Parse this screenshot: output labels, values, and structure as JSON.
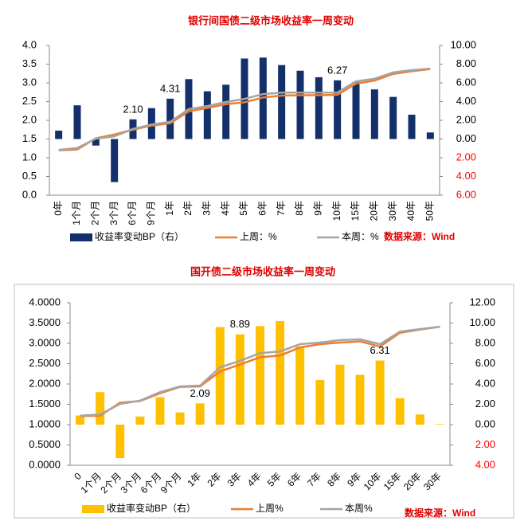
{
  "chart_data": [
    {
      "type": "combo",
      "title": "银行间国债二级市场收益率一周变动",
      "source": "数据来源：Wind",
      "categories": [
        "0年",
        "1个月",
        "2个月",
        "3个月",
        "6个月",
        "9个月",
        "1年",
        "2年",
        "3年",
        "4年",
        "5年",
        "6年",
        "7年",
        "8年",
        "9年",
        "10年",
        "15年",
        "20年",
        "30年",
        "40年",
        "50年"
      ],
      "series": [
        {
          "name": "收益率变动BP（右）",
          "kind": "bar",
          "axis": "y2",
          "color": "#13306b",
          "values": [
            0.9,
            3.6,
            -0.7,
            -4.6,
            2.1,
            3.3,
            4.31,
            6.4,
            5.1,
            5.8,
            8.6,
            8.7,
            7.9,
            7.3,
            6.6,
            6.27,
            6.1,
            5.3,
            4.5,
            2.6,
            0.7
          ],
          "value_labels": [
            null,
            null,
            null,
            null,
            "2.10",
            null,
            "4.31",
            null,
            null,
            null,
            null,
            null,
            null,
            null,
            null,
            "6.27",
            null,
            null,
            null,
            null,
            null
          ]
        },
        {
          "name": "上周：%",
          "kind": "line",
          "color": "#ed7d31",
          "values": [
            1.2,
            1.22,
            1.52,
            1.62,
            1.75,
            1.86,
            1.92,
            2.24,
            2.33,
            2.43,
            2.48,
            2.61,
            2.66,
            2.67,
            2.67,
            2.68,
            2.98,
            3.06,
            3.24,
            3.31,
            3.37
          ]
        },
        {
          "name": "本周：%",
          "kind": "line",
          "color": "#a5a5a5",
          "values": [
            1.21,
            1.26,
            1.51,
            1.57,
            1.77,
            1.89,
            1.96,
            2.3,
            2.38,
            2.49,
            2.57,
            2.7,
            2.74,
            2.74,
            2.74,
            2.74,
            3.04,
            3.11,
            3.28,
            3.34,
            3.38
          ]
        }
      ],
      "ylim": [
        0,
        4
      ],
      "yticks": [
        {
          "value": 0,
          "label": "0.0"
        },
        {
          "value": 0.5,
          "label": "0.5"
        },
        {
          "value": 1,
          "label": "1.0"
        },
        {
          "value": 1.5,
          "label": "1.5"
        },
        {
          "value": 2,
          "label": "2.0"
        },
        {
          "value": 2.5,
          "label": "2.5"
        },
        {
          "value": 3,
          "label": "3.0"
        },
        {
          "value": 3.5,
          "label": "3.5"
        },
        {
          "value": 4,
          "label": "4.0"
        }
      ],
      "y2lim": [
        -6,
        10
      ],
      "y2ticks": [
        {
          "value": 10,
          "label": "10.00"
        },
        {
          "value": 8,
          "label": "8.00"
        },
        {
          "value": 6,
          "label": "6.00"
        },
        {
          "value": 4,
          "label": "4.00"
        },
        {
          "value": 2,
          "label": "2.00"
        },
        {
          "value": 0,
          "label": "0.00"
        },
        {
          "value": -2,
          "label": "2.00"
        },
        {
          "value": -4,
          "label": "4.00"
        },
        {
          "value": -6,
          "label": "6.00"
        }
      ],
      "negative_tick_color": "#ff0000",
      "grid": false
    },
    {
      "type": "combo",
      "title": "国开债二级市场收益率一周变动",
      "source": "数据来源：Wind",
      "categories": [
        "0",
        "1个月",
        "2个月",
        "3个月",
        "6个月",
        "9个月",
        "1年",
        "2年",
        "3年",
        "4年",
        "5年",
        "6年",
        "7年",
        "8年",
        "9年",
        "10年",
        "15年",
        "20年",
        "30年"
      ],
      "series": [
        {
          "name": "收益率变动BP（右）",
          "kind": "bar",
          "axis": "y2",
          "color": "#ffc000",
          "values": [
            0.9,
            3.2,
            -3.3,
            0.8,
            2.7,
            1.2,
            2.09,
            9.6,
            8.89,
            9.7,
            10.2,
            7.7,
            4.4,
            5.9,
            4.9,
            6.31,
            2.6,
            1.0,
            0.05
          ],
          "value_labels": [
            null,
            null,
            null,
            null,
            null,
            null,
            "2.09",
            null,
            "8.89",
            null,
            null,
            null,
            null,
            null,
            null,
            "6.31",
            null,
            null,
            null
          ]
        },
        {
          "name": "上周%",
          "kind": "line",
          "color": "#ed7d31",
          "values": [
            1.21,
            1.22,
            1.54,
            1.58,
            1.77,
            1.93,
            1.94,
            2.31,
            2.48,
            2.66,
            2.7,
            2.9,
            2.98,
            3.02,
            3.05,
            2.92,
            3.26,
            3.34,
            3.41
          ]
        },
        {
          "name": "本周%",
          "kind": "line",
          "color": "#a5a5a5",
          "values": [
            1.22,
            1.25,
            1.51,
            1.59,
            1.8,
            1.94,
            1.96,
            2.41,
            2.57,
            2.76,
            2.8,
            2.98,
            3.02,
            3.08,
            3.1,
            2.98,
            3.29,
            3.35,
            3.41
          ]
        }
      ],
      "ylim": [
        0,
        4
      ],
      "yticks": [
        {
          "value": 0,
          "label": "0.0000"
        },
        {
          "value": 0.5,
          "label": "0.5000"
        },
        {
          "value": 1,
          "label": "1.0000"
        },
        {
          "value": 1.5,
          "label": "1.5000"
        },
        {
          "value": 2,
          "label": "2.0000"
        },
        {
          "value": 2.5,
          "label": "2.5000"
        },
        {
          "value": 3,
          "label": "3.0000"
        },
        {
          "value": 3.5,
          "label": "3.5000"
        },
        {
          "value": 4,
          "label": "4.0000"
        }
      ],
      "y2lim": [
        -4,
        12
      ],
      "y2ticks": [
        {
          "value": 12,
          "label": "12.00"
        },
        {
          "value": 10,
          "label": "10.00"
        },
        {
          "value": 8,
          "label": "8.00"
        },
        {
          "value": 6,
          "label": "6.00"
        },
        {
          "value": 4,
          "label": "4.00"
        },
        {
          "value": 2,
          "label": "2.00"
        },
        {
          "value": 0,
          "label": "0.00"
        },
        {
          "value": -2,
          "label": "2.00"
        },
        {
          "value": -4,
          "label": "4.00"
        }
      ],
      "negative_tick_color": "#ff0000",
      "grid": false
    }
  ]
}
